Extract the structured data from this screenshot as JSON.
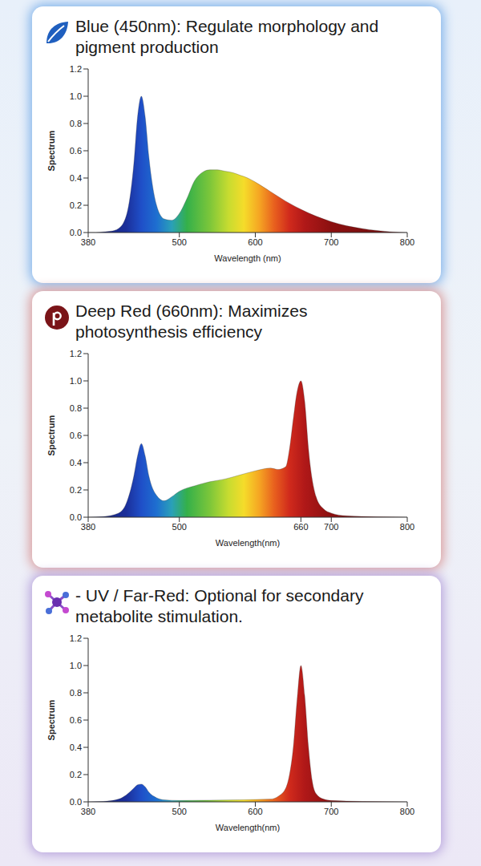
{
  "chart_data": [
    {
      "type": "area",
      "title": "Blue (450nm): Regulate morphology and pigment production",
      "x_label": "Wavelength (nm)",
      "y_label": "Spectrum",
      "x": [
        380,
        390,
        400,
        410,
        420,
        430,
        440,
        445,
        450,
        455,
        460,
        470,
        480,
        490,
        500,
        510,
        520,
        530,
        540,
        550,
        560,
        570,
        580,
        590,
        600,
        620,
        640,
        660,
        680,
        700,
        720,
        740,
        760,
        780,
        800
      ],
      "values": [
        0,
        0,
        0.005,
        0.01,
        0.03,
        0.12,
        0.5,
        0.85,
        1.0,
        0.85,
        0.55,
        0.2,
        0.1,
        0.09,
        0.14,
        0.25,
        0.38,
        0.44,
        0.46,
        0.46,
        0.45,
        0.44,
        0.42,
        0.4,
        0.37,
        0.3,
        0.23,
        0.17,
        0.12,
        0.08,
        0.05,
        0.03,
        0.015,
        0.005,
        0
      ],
      "xlim": [
        380,
        800
      ],
      "ylim": [
        0,
        1.2
      ],
      "xticks": [
        380,
        500,
        600,
        700,
        800
      ],
      "yticks": [
        {
          "value": 0,
          "label": "0.0"
        },
        0.2,
        0.4,
        0.6,
        0.8,
        {
          "value": 1,
          "label": "1.0"
        },
        1.2
      ]
    },
    {
      "type": "area",
      "title": "Deep Red (660nm): Maximizes photosynthesis efficiency",
      "x_label": "Wavelength(nm)",
      "y_label": "Spectrum",
      "x": [
        380,
        400,
        420,
        430,
        440,
        445,
        450,
        455,
        460,
        470,
        480,
        490,
        500,
        520,
        540,
        560,
        580,
        600,
        620,
        630,
        640,
        645,
        650,
        655,
        660,
        665,
        670,
        680,
        690,
        700,
        720,
        760,
        800
      ],
      "values": [
        0,
        0.005,
        0.03,
        0.1,
        0.3,
        0.45,
        0.54,
        0.45,
        0.3,
        0.16,
        0.12,
        0.15,
        0.19,
        0.23,
        0.26,
        0.28,
        0.31,
        0.34,
        0.36,
        0.35,
        0.37,
        0.5,
        0.72,
        0.92,
        1.0,
        0.85,
        0.5,
        0.15,
        0.06,
        0.03,
        0.01,
        0.003,
        0
      ],
      "xlim": [
        380,
        800
      ],
      "ylim": [
        0,
        1.2
      ],
      "xticks": [
        380,
        500,
        660,
        700,
        800
      ],
      "yticks": [
        {
          "value": 0,
          "label": "0.0"
        },
        0.2,
        0.4,
        0.6,
        0.8,
        {
          "value": 1,
          "label": "1.0"
        },
        1.2
      ]
    },
    {
      "type": "area",
      "title": "- UV / Far-Red: Optional for secondary metabolite stimulation.",
      "x_label": "Wavelength(nm)",
      "y_label": "Spectrum",
      "x": [
        380,
        400,
        420,
        430,
        440,
        445,
        450,
        455,
        460,
        470,
        480,
        500,
        540,
        580,
        620,
        630,
        640,
        645,
        650,
        655,
        660,
        665,
        670,
        675,
        680,
        690,
        700,
        740,
        800
      ],
      "values": [
        0,
        0.003,
        0.02,
        0.05,
        0.1,
        0.125,
        0.13,
        0.11,
        0.07,
        0.03,
        0.015,
        0.01,
        0.012,
        0.015,
        0.02,
        0.04,
        0.1,
        0.2,
        0.4,
        0.75,
        1.0,
        0.78,
        0.4,
        0.15,
        0.06,
        0.02,
        0.01,
        0.003,
        0
      ],
      "xlim": [
        380,
        800
      ],
      "ylim": [
        0,
        1.2
      ],
      "xticks": [
        380,
        500,
        600,
        700,
        800
      ],
      "yticks": [
        {
          "value": 0,
          "label": "0.0"
        },
        0.2,
        0.4,
        0.6,
        0.8,
        {
          "value": 1,
          "label": "1.0"
        },
        1.2
      ]
    }
  ]
}
